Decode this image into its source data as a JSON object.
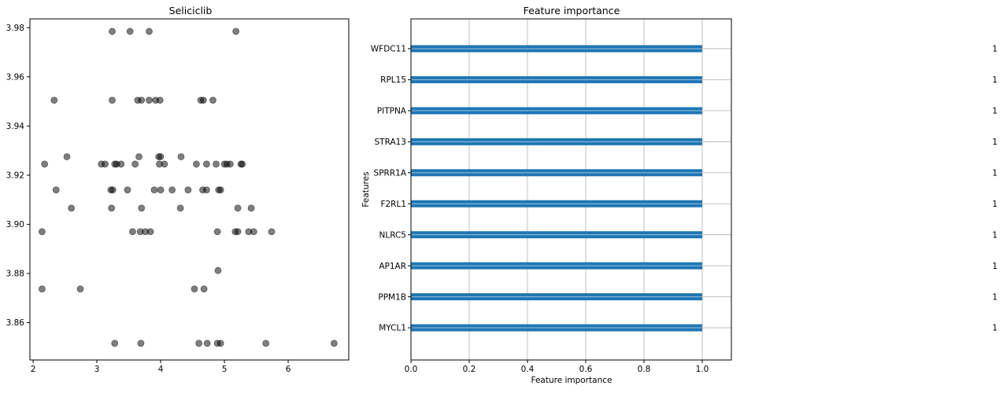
{
  "chart_data": [
    {
      "type": "scatter",
      "title": "Seliciclib",
      "xlabel": "",
      "ylabel": "",
      "xlim": [
        1.95,
        6.95
      ],
      "ylim": [
        3.8448,
        3.9836
      ],
      "xticks": [
        2,
        3,
        4,
        5,
        6
      ],
      "yticks": [
        3.86,
        3.88,
        3.9,
        3.92,
        3.94,
        3.96,
        3.98
      ],
      "marker_color": "#000000",
      "marker_alpha": 0.5,
      "points": [
        {
          "x": 3.24,
          "y": 3.9785
        },
        {
          "x": 3.52,
          "y": 3.9785
        },
        {
          "x": 3.82,
          "y": 3.9785
        },
        {
          "x": 5.18,
          "y": 3.9785
        },
        {
          "x": 2.33,
          "y": 3.9505
        },
        {
          "x": 3.24,
          "y": 3.9505
        },
        {
          "x": 3.64,
          "y": 3.9505
        },
        {
          "x": 3.7,
          "y": 3.9505
        },
        {
          "x": 3.82,
          "y": 3.9505
        },
        {
          "x": 3.92,
          "y": 3.9505
        },
        {
          "x": 3.99,
          "y": 3.9505
        },
        {
          "x": 4.63,
          "y": 3.9505
        },
        {
          "x": 4.67,
          "y": 3.9505
        },
        {
          "x": 4.82,
          "y": 3.9505
        },
        {
          "x": 2.18,
          "y": 3.9245
        },
        {
          "x": 2.53,
          "y": 3.9275
        },
        {
          "x": 3.07,
          "y": 3.9245
        },
        {
          "x": 3.13,
          "y": 3.9245
        },
        {
          "x": 3.28,
          "y": 3.9245
        },
        {
          "x": 3.31,
          "y": 3.9245
        },
        {
          "x": 3.38,
          "y": 3.9245
        },
        {
          "x": 3.6,
          "y": 3.9245
        },
        {
          "x": 3.66,
          "y": 3.9275
        },
        {
          "x": 3.97,
          "y": 3.9275
        },
        {
          "x": 4.0,
          "y": 3.9275
        },
        {
          "x": 3.98,
          "y": 3.9245
        },
        {
          "x": 4.06,
          "y": 3.9245
        },
        {
          "x": 4.32,
          "y": 3.9275
        },
        {
          "x": 4.56,
          "y": 3.9245
        },
        {
          "x": 4.72,
          "y": 3.9245
        },
        {
          "x": 4.87,
          "y": 3.9245
        },
        {
          "x": 5.0,
          "y": 3.9245
        },
        {
          "x": 5.04,
          "y": 3.9245
        },
        {
          "x": 5.09,
          "y": 3.9245
        },
        {
          "x": 5.26,
          "y": 3.9245
        },
        {
          "x": 5.28,
          "y": 3.9245
        },
        {
          "x": 2.36,
          "y": 3.914
        },
        {
          "x": 3.22,
          "y": 3.914
        },
        {
          "x": 3.25,
          "y": 3.914
        },
        {
          "x": 3.48,
          "y": 3.914
        },
        {
          "x": 3.9,
          "y": 3.914
        },
        {
          "x": 4.0,
          "y": 3.914
        },
        {
          "x": 4.18,
          "y": 3.914
        },
        {
          "x": 4.43,
          "y": 3.914
        },
        {
          "x": 4.66,
          "y": 3.914
        },
        {
          "x": 4.72,
          "y": 3.914
        },
        {
          "x": 4.91,
          "y": 3.914
        },
        {
          "x": 4.94,
          "y": 3.914
        },
        {
          "x": 2.6,
          "y": 3.9066
        },
        {
          "x": 3.23,
          "y": 3.9066
        },
        {
          "x": 3.7,
          "y": 3.9066
        },
        {
          "x": 4.31,
          "y": 3.9066
        },
        {
          "x": 5.21,
          "y": 3.9066
        },
        {
          "x": 5.42,
          "y": 3.9066
        },
        {
          "x": 2.14,
          "y": 3.897
        },
        {
          "x": 3.56,
          "y": 3.897
        },
        {
          "x": 3.68,
          "y": 3.897
        },
        {
          "x": 3.76,
          "y": 3.897
        },
        {
          "x": 3.84,
          "y": 3.897
        },
        {
          "x": 4.89,
          "y": 3.897
        },
        {
          "x": 5.17,
          "y": 3.897
        },
        {
          "x": 5.21,
          "y": 3.897
        },
        {
          "x": 5.38,
          "y": 3.897
        },
        {
          "x": 5.46,
          "y": 3.897
        },
        {
          "x": 5.74,
          "y": 3.897
        },
        {
          "x": 4.9,
          "y": 3.8812
        },
        {
          "x": 2.14,
          "y": 3.8737
        },
        {
          "x": 2.74,
          "y": 3.8737
        },
        {
          "x": 4.53,
          "y": 3.8737
        },
        {
          "x": 4.68,
          "y": 3.8737
        },
        {
          "x": 3.28,
          "y": 3.8516
        },
        {
          "x": 3.69,
          "y": 3.8516
        },
        {
          "x": 4.6,
          "y": 3.8516
        },
        {
          "x": 4.73,
          "y": 3.8516
        },
        {
          "x": 4.89,
          "y": 3.8516
        },
        {
          "x": 4.94,
          "y": 3.8516
        },
        {
          "x": 5.65,
          "y": 3.8516
        },
        {
          "x": 6.72,
          "y": 3.8516
        }
      ]
    },
    {
      "type": "bar",
      "orientation": "horizontal",
      "title": "Feature importance",
      "xlabel": "Feature importance",
      "ylabel": "Features",
      "xlim": [
        0,
        1.1
      ],
      "xticks": [
        0.0,
        0.2,
        0.4,
        0.6,
        0.8,
        1.0
      ],
      "xtick_labels": [
        "0.0",
        "0.2",
        "0.4",
        "0.6",
        "0.8",
        "1.0"
      ],
      "grid": true,
      "bar_color": "#1f77b4",
      "categories": [
        "WFDC11",
        "RPL15",
        "PITPNA",
        "STRA13",
        "SPRR1A",
        "F2RL1",
        "NLRC5",
        "AP1AR",
        "PPM1B",
        "MYCL1"
      ],
      "values": [
        1,
        1,
        1,
        1,
        1,
        1,
        1,
        1,
        1,
        1
      ],
      "value_labels": [
        "1",
        "1",
        "1",
        "1",
        "1",
        "1",
        "1",
        "1",
        "1",
        "1"
      ]
    }
  ]
}
